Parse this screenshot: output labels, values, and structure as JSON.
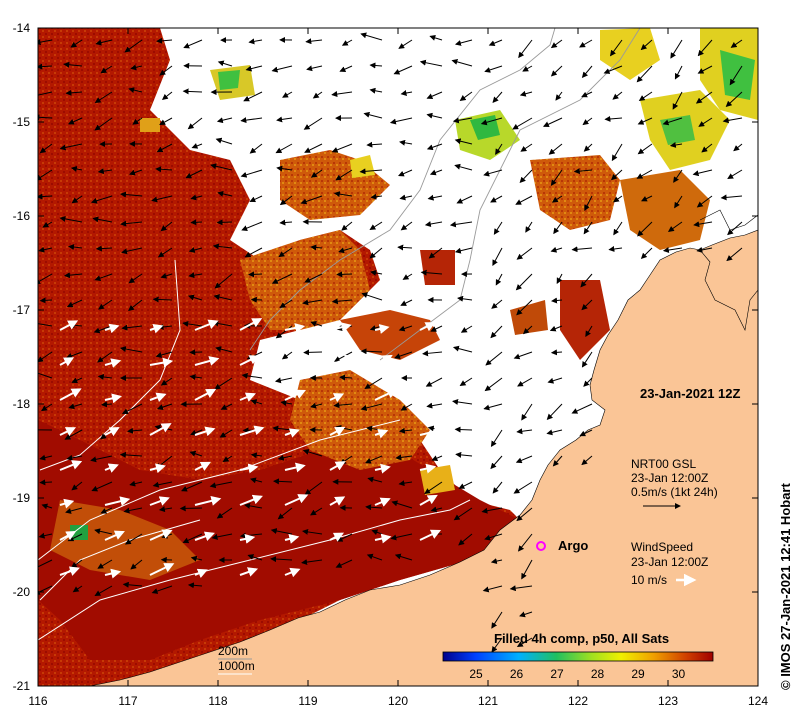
{
  "map": {
    "lon_ticks": [
      "116",
      "117",
      "118",
      "119",
      "120",
      "121",
      "122",
      "123",
      "124"
    ],
    "lat_ticks": [
      "-14",
      "-15",
      "-16",
      "-17",
      "-18",
      "-19",
      "-20",
      "-21"
    ],
    "timestamp": "23-Jan-2021 12Z",
    "current_legend": {
      "title": "NRT00 GSL",
      "time": "23-Jan 12:00Z",
      "scale": "0.5m/s (1kt 24h)"
    },
    "wind_legend": {
      "title": "WindSpeed",
      "time": "23-Jan 12:00Z",
      "scale": "10 m/s"
    },
    "argo_label": "Argo",
    "isobath_labels": [
      "200m",
      "1000m"
    ],
    "colorbar": {
      "title": "Filled 4h comp, p50, All Sats",
      "ticks": [
        "25",
        "26",
        "27",
        "28",
        "29",
        "30"
      ]
    },
    "credit": "© IMOS 27-Jan-2021 12:41 Hobart",
    "colors": {
      "land": "#fac596",
      "sst_hot": "#a50f00",
      "sst_warm": "#c84a08",
      "sst_mid": "#e08a10",
      "sst_cool": "#e8d020",
      "sst_green": "#40c040"
    }
  }
}
